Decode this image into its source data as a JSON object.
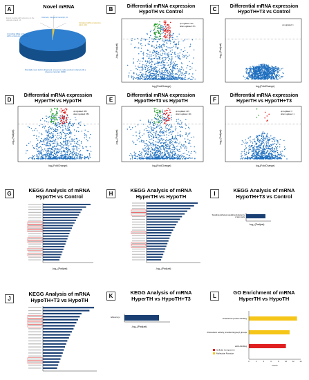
{
  "panels": {
    "A": {
      "letter": "A",
      "title": "Novel mRNA",
      "slices": [
        {
          "label": "Exonic overlap with reference on the opposite strand, 13",
          "color": "#f5c518"
        },
        {
          "label": "Unknown, Intergenic transcript, 61",
          "color": "#f5c518"
        },
        {
          "label": "Contained within a reference intron, 101",
          "color": "#f5c518"
        },
        {
          "label": "A transfrag falling entirely within a reference intron, 32",
          "color": "#f5c518"
        },
        {
          "label": "Potentially novel isoform (fragment): at least one splice junction is shared with a reference transcript, 93430",
          "color": "#1f6fbf"
        }
      ]
    },
    "B": {
      "letter": "B",
      "title": "Differential mRNA expression",
      "subtitle": "HypoTH vs Control",
      "up": "up regulated: 412",
      "down": "down regulated: 371",
      "xlab": "log₂(FoldChange)",
      "ylab": "-log₁₀(Padjust)"
    },
    "C": {
      "letter": "C",
      "title": "Differential mRNA expression",
      "subtitle": "HypoTH+T3 vs Control",
      "up": "up regulated: 1",
      "down": "",
      "xlab": "log₂(FoldChange)",
      "ylab": "-log₁₀(Padjust)"
    },
    "D": {
      "letter": "D",
      "title": "Differential mRNA expression",
      "subtitle": "HyperTH vs HypoTH",
      "up": "up regulated: 466",
      "down": "down regulated: 350",
      "xlab": "log₂(FoldChange)",
      "ylab": "-log₁₀(Padjust)"
    },
    "E": {
      "letter": "E",
      "title": "Differential mRNA expression",
      "subtitle": "HypoTH+T3 vs HypoTH",
      "up": "up regulated: 143",
      "down": "down regulated: 101",
      "xlab": "log₂(FoldChange)",
      "ylab": "-log₁₀(Padjust)"
    },
    "F": {
      "letter": "F",
      "title": "Differential mRNA expression",
      "subtitle": "HyperTH vs HypoTH+T3",
      "up": "up regulated: 3",
      "down": "down regulated: 1",
      "xlab": "log₂(FoldChange)",
      "ylab": "-log₁₀(Padjust)"
    },
    "G": {
      "letter": "G",
      "title": "KEGG Analysis of mRNA",
      "subtitle": "HypoTH vs Control",
      "xlab": "-log₁₀(Padjust)"
    },
    "H": {
      "letter": "H",
      "title": "KEGG Analysis of mRNA",
      "subtitle": "HyperTH vs HypoTH",
      "xlab": "-log₁₀(Padjust)"
    },
    "I": {
      "letter": "I",
      "title": "KEGG Analysis of mRNA",
      "subtitle": "HypoTH+T3 vs Control",
      "xlab": "-log₁₀(Padjust)",
      "bar_label": "Signaling pathways regulating pluripotency of stem cells"
    },
    "J": {
      "letter": "J",
      "title": "KEGG Analysis of mRNA",
      "subtitle": "HypoTH+T3 vs HypoTH",
      "xlab": "-log₁₀(Padjust)"
    },
    "K": {
      "letter": "K",
      "title": "KEGG Analysis of mRNA",
      "subtitle": "HyperTH vs HypoTH+T3",
      "xlab": "-log₁₀(Padjust)",
      "bar_label": "Adherens ju"
    },
    "L": {
      "letter": "L",
      "title": "GO Enrichment of mRNA",
      "subtitle": "HyperTH vs HypoTH",
      "bars": [
        {
          "label": "cholesterol-protein binding",
          "value": 13,
          "color": "#f5c518"
        },
        {
          "label": "thioredoxin activity, transferring acyl groups",
          "value": 11,
          "color": "#f5c518"
        },
        {
          "label": "actin-binding",
          "value": 10,
          "color": "#e02020"
        }
      ],
      "legend": [
        {
          "label": "Cellular Component",
          "color": "#e02020"
        },
        {
          "label": "Molecular Function",
          "color": "#f5c518"
        }
      ],
      "xlab": "Count",
      "ticks": [
        "0",
        "2",
        "4",
        "6",
        "8",
        "10",
        "12",
        "14"
      ]
    }
  },
  "kegg": {
    "G": {
      "values": [
        9.5,
        8.6,
        7.8,
        7.5,
        7.2,
        6.9,
        6.6,
        6.3,
        6.0,
        5.8,
        5.5,
        5.3,
        5.1,
        4.9,
        4.7,
        4.5,
        4.3,
        4.1,
        3.9,
        3.7,
        3.5,
        3.3
      ],
      "highlight": [
        7,
        8,
        9,
        10,
        13,
        14,
        17,
        19
      ]
    },
    "H": {
      "values": [
        9.8,
        9.1,
        8.4,
        7.8,
        7.3,
        6.8,
        6.4,
        6.0,
        5.7,
        5.4,
        5.1,
        4.8,
        4.6,
        4.4,
        4.2,
        4.0,
        3.8,
        3.6,
        3.4,
        3.2,
        3.0,
        2.8
      ],
      "highlight": [
        3,
        4,
        11,
        15,
        16
      ]
    },
    "J": {
      "values": [
        9.0,
        8.2,
        6.8,
        6.5,
        6.2,
        5.9,
        5.6,
        5.4,
        5.1,
        4.8,
        4.6,
        4.3,
        4.1,
        3.9,
        3.7,
        3.5,
        3.3,
        3.1,
        2.9,
        2.7,
        2.5
      ],
      "highlight": [
        3,
        4,
        5,
        6,
        17,
        18
      ]
    }
  },
  "chart_data": [
    {
      "type": "bar",
      "title": "KEGG Analysis of mRNA HypoTH+T3 vs Control",
      "categories": [
        "Signaling pathways regulating pluripotency of stem cells"
      ],
      "values": [
        6
      ],
      "xlabel": "-log₁₀(Padjust)"
    },
    {
      "type": "bar",
      "title": "KEGG Analysis of mRNA HyperTH vs HypoTH+T3",
      "categories": [
        "Adherens ju"
      ],
      "values": [
        4
      ],
      "xlabel": "-log₁₀(Padjust)"
    },
    {
      "type": "bar",
      "title": "GO Enrichment of mRNA HyperTH vs HypoTH",
      "categories": [
        "cholesterol-protein binding",
        "thioredoxin activity, transferring acyl groups",
        "actin-binding"
      ],
      "values": [
        13,
        11,
        10
      ],
      "xlabel": "Count"
    }
  ]
}
